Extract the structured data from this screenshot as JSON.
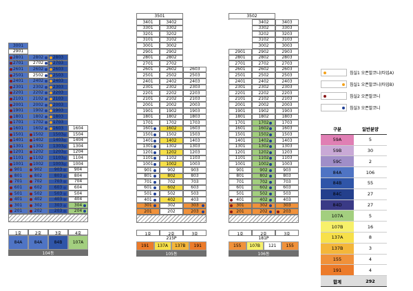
{
  "buildings": [
    {
      "name": "104동",
      "cols": 4,
      "x": 12,
      "rows": [
        [
          "3001",
          "",
          "",
          ""
        ],
        [
          "2901",
          "",
          "",
          ""
        ],
        [
          "2801",
          "2802",
          "2803",
          ""
        ],
        [
          "2701",
          "2702",
          "2703",
          ""
        ],
        [
          "2601",
          "2602",
          "2603",
          ""
        ],
        [
          "2501",
          "2502",
          "2503",
          ""
        ],
        [
          "2401",
          "2402",
          "2403",
          ""
        ],
        [
          "2301",
          "2302",
          "2303",
          ""
        ],
        [
          "2201",
          "2202",
          "2203",
          ""
        ],
        [
          "2101",
          "2102",
          "2103",
          ""
        ],
        [
          "2001",
          "2002",
          "2003",
          ""
        ],
        [
          "1901",
          "1902",
          "1903",
          ""
        ],
        [
          "1801",
          "1802",
          "1803",
          ""
        ],
        [
          "1701",
          "1702",
          "1703",
          ""
        ],
        [
          "1601",
          "1602",
          "1603",
          "1604"
        ],
        [
          "1501",
          "1502",
          "1503",
          "1504"
        ],
        [
          "1401",
          "1402",
          "1403",
          "1404"
        ],
        [
          "1301",
          "1302",
          "1303",
          "1304"
        ],
        [
          "1201",
          "1202",
          "1203",
          "1204"
        ],
        [
          "1101",
          "1102",
          "1103",
          "1104"
        ],
        [
          "1001",
          "1002",
          "1003",
          "1004"
        ],
        [
          "901",
          "902",
          "903",
          "904"
        ],
        [
          "801",
          "802",
          "803",
          "804"
        ],
        [
          "701",
          "702",
          "703",
          "704"
        ],
        [
          "601",
          "602",
          "603",
          "604"
        ],
        [
          "501",
          "502",
          "503",
          "504"
        ],
        [
          "401",
          "402",
          "403",
          "404"
        ],
        [
          "301",
          "302",
          "303",
          "304"
        ],
        [
          "201",
          "202",
          "203",
          "204"
        ]
      ],
      "line_labels": [
        "1호",
        "2호",
        "3호",
        "4호"
      ],
      "types": [
        "84A",
        "84A",
        "84B",
        "107A"
      ]
    },
    {
      "name": "105동",
      "cols": 3,
      "x": 198,
      "tower": "3501",
      "rows": [
        [
          "3401",
          "3402",
          ""
        ],
        [
          "3301",
          "3302",
          ""
        ],
        [
          "3201",
          "3202",
          ""
        ],
        [
          "3101",
          "3102",
          ""
        ],
        [
          "3001",
          "3002",
          ""
        ],
        [
          "2901",
          "2902",
          ""
        ],
        [
          "2801",
          "2802",
          ""
        ],
        [
          "2701",
          "2702",
          ""
        ],
        [
          "2601",
          "2602",
          "2603"
        ],
        [
          "2501",
          "2502",
          "2503"
        ],
        [
          "2401",
          "2402",
          "2403"
        ],
        [
          "2301",
          "2302",
          "2303"
        ],
        [
          "2201",
          "2202",
          "2203"
        ],
        [
          "2101",
          "2102",
          "2103"
        ],
        [
          "2001",
          "2002",
          "2003"
        ],
        [
          "1901",
          "1902",
          "1903"
        ],
        [
          "1801",
          "1802",
          "1803"
        ],
        [
          "1701",
          "1702",
          "1703"
        ],
        [
          "1601",
          "1602",
          "1603"
        ],
        [
          "1501",
          "1502",
          "1503"
        ],
        [
          "1401",
          "1402",
          "1403"
        ],
        [
          "1301",
          "1302",
          "1303"
        ],
        [
          "1201",
          "1202",
          "1203"
        ],
        [
          "1101",
          "1102",
          "1103"
        ],
        [
          "1001",
          "1002",
          "1003"
        ],
        [
          "901",
          "902",
          "903"
        ],
        [
          "801",
          "802",
          "803"
        ],
        [
          "701",
          "702",
          "703"
        ],
        [
          "601",
          "602",
          "603"
        ],
        [
          "501",
          "502",
          "503"
        ],
        [
          "401",
          "402",
          "403"
        ],
        [
          "301",
          "302",
          "303"
        ],
        [
          "201",
          "202",
          "203"
        ]
      ],
      "line_labels": [
        "1호",
        "2호",
        "3호"
      ],
      "pilotis": "215P",
      "types": [
        "191",
        "137A",
        "137B",
        "191"
      ]
    },
    {
      "name": "106동",
      "cols": 3,
      "x": 332,
      "tower": "3502",
      "rows": [
        [
          "",
          "3402",
          "3403"
        ],
        [
          "",
          "3302",
          "3303"
        ],
        [
          "",
          "3202",
          "3203"
        ],
        [
          "",
          "3102",
          "3103"
        ],
        [
          "",
          "3002",
          "3003"
        ],
        [
          "2901",
          "2902",
          "2903"
        ],
        [
          "2801",
          "2802",
          "2803"
        ],
        [
          "2701",
          "2702",
          "2703"
        ],
        [
          "2601",
          "2602",
          "2603"
        ],
        [
          "2501",
          "2502",
          "2503"
        ],
        [
          "2401",
          "2402",
          "2403"
        ],
        [
          "2301",
          "2302",
          "2303"
        ],
        [
          "2201",
          "2202",
          "2203"
        ],
        [
          "2101",
          "2102",
          "2103"
        ],
        [
          "2001",
          "2002",
          "2003"
        ],
        [
          "1901",
          "1902",
          "1903"
        ],
        [
          "1801",
          "1802",
          "1803"
        ],
        [
          "1701",
          "1702",
          "1703"
        ],
        [
          "1601",
          "1602",
          "1603"
        ],
        [
          "1501",
          "1502",
          "1503"
        ],
        [
          "1401",
          "1402",
          "1403"
        ],
        [
          "1301",
          "1302",
          "1303"
        ],
        [
          "1201",
          "1202",
          "1203"
        ],
        [
          "1101",
          "1102",
          "1103"
        ],
        [
          "1001",
          "1002",
          "1003"
        ],
        [
          "901",
          "902",
          "903"
        ],
        [
          "801",
          "802",
          "803"
        ],
        [
          "701",
          "702",
          "703"
        ],
        [
          "601",
          "602",
          "603"
        ],
        [
          "501",
          "502",
          "503"
        ],
        [
          "401",
          "402",
          "403"
        ],
        [
          "301",
          "302",
          "303"
        ],
        [
          "201",
          "202",
          "203"
        ]
      ],
      "line_labels": [
        "1호",
        "2호",
        "3호"
      ],
      "pilotis": "181P",
      "types": [
        "155",
        "107B",
        "121",
        "155"
      ]
    }
  ],
  "legend": [
    {
      "label": "침실1 오픈발코니(타입A)",
      "color": "#f4a21a",
      "pos": "left"
    },
    {
      "label": "침실1 오픈발코니(타입B)",
      "color": "#f4a21a",
      "pos": "right"
    },
    {
      "label": "침실2 오픈발코니",
      "color": "#8a1717",
      "pos": "left"
    },
    {
      "label": "침실3 오픈발코니",
      "color": "#1f3f96",
      "pos": "right"
    }
  ],
  "table": {
    "headers": [
      "구분",
      "일반분양"
    ],
    "rows": [
      {
        "type": "59A",
        "count": "5",
        "color": "#e07fb4"
      },
      {
        "type": "59B",
        "count": "30",
        "color": "#c9a9d6"
      },
      {
        "type": "59C",
        "count": "2",
        "color": "#a08ec8"
      },
      {
        "type": "84A",
        "count": "106",
        "color": "#4f74c4"
      },
      {
        "type": "84B",
        "count": "55",
        "color": "#2f55a8"
      },
      {
        "type": "84C",
        "count": "27",
        "color": "#233f8c"
      },
      {
        "type": "84D",
        "count": "27",
        "color": "#3a3a86"
      },
      {
        "type": "107A",
        "count": "5",
        "color": "#a3cf7f"
      },
      {
        "type": "107B",
        "count": "16",
        "color": "#f7f06a"
      },
      {
        "type": "137A",
        "count": "8",
        "color": "#f7e04a"
      },
      {
        "type": "137B",
        "count": "3",
        "color": "#f4b63a"
      },
      {
        "type": "155",
        "count": "4",
        "color": "#f0913a"
      },
      {
        "type": "191",
        "count": "4",
        "color": "#ec7b2a"
      }
    ],
    "total_label": "합계",
    "total": "292"
  }
}
